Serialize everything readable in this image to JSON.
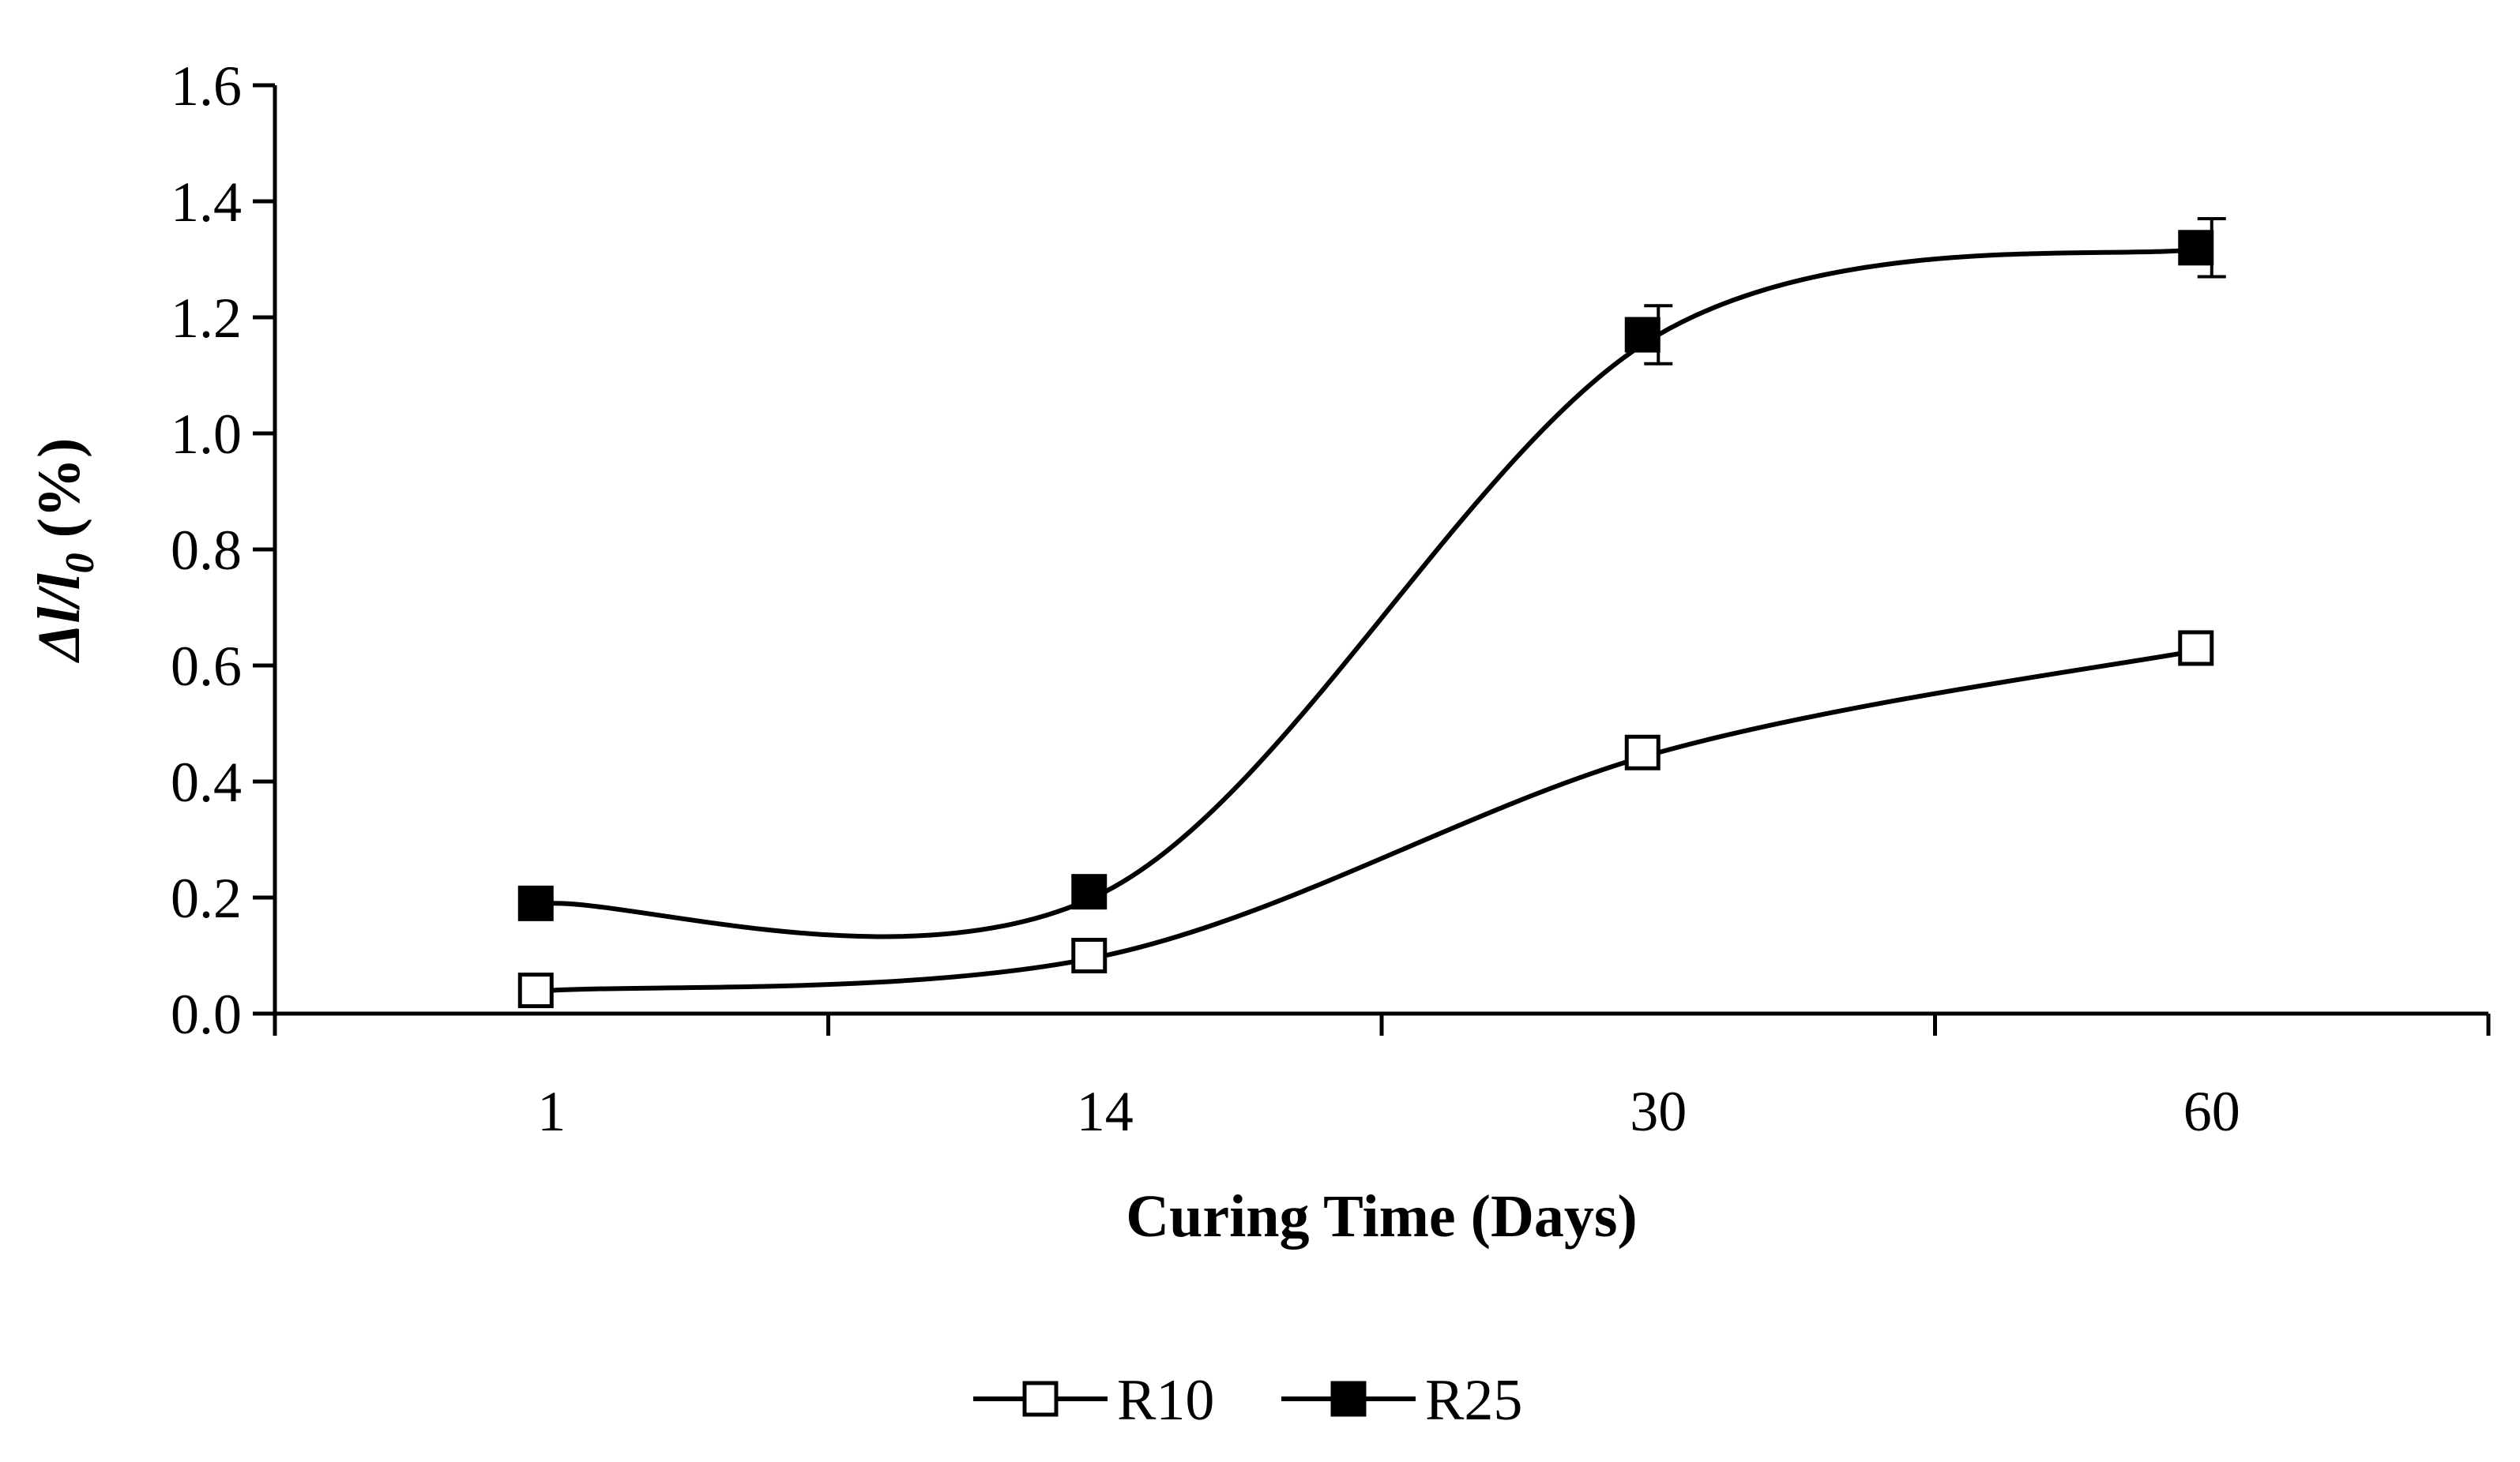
{
  "chart_data": {
    "type": "line",
    "title": "",
    "xlabel": "Curing Time (Days)",
    "ylabel": {
      "prefix": "Δl/l",
      "subscript": "0",
      "suffix": " (%)"
    },
    "categories": [
      "1",
      "14",
      "30",
      "60"
    ],
    "ylim": [
      0.0,
      1.6
    ],
    "yticks": [
      "0.0",
      "0.2",
      "0.4",
      "0.6",
      "0.8",
      "1.0",
      "1.2",
      "1.4",
      "1.6"
    ],
    "grid": false,
    "legend_position": "bottom-center",
    "series": [
      {
        "name": "R10",
        "marker": "open-square",
        "values": [
          0.04,
          0.1,
          0.45,
          0.63
        ],
        "errors": [
          0.0,
          0.0,
          0.0,
          0.0
        ]
      },
      {
        "name": "R25",
        "marker": "filled-square",
        "values": [
          0.19,
          0.21,
          1.17,
          1.32
        ],
        "errors": [
          0.0,
          0.0,
          0.05,
          0.05
        ]
      }
    ],
    "colors": {
      "line": "#000000",
      "marker_fill_open": "#ffffff",
      "marker_fill_solid": "#000000"
    }
  }
}
